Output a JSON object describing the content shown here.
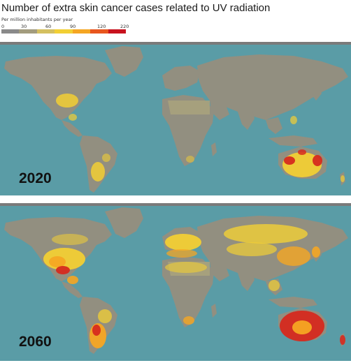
{
  "title": "Number of extra skin cancer cases related to UV radiation",
  "legend": {
    "caption": "Per million inhabitants per year",
    "ticks": [
      "0",
      "30",
      "60",
      "90",
      "120",
      "220"
    ],
    "colors": [
      "#8a8a8a",
      "#a39c7e",
      "#d4c060",
      "#f2cf34",
      "#f5a623",
      "#e8561e",
      "#c8121e"
    ]
  },
  "maps": [
    {
      "year": "2020"
    },
    {
      "year": "2060"
    }
  ],
  "palette": {
    "ocean": "#5a9ca6",
    "land": "#928f80",
    "land_light": "#a8a27c",
    "antarctica": "#7a7a7a",
    "yellow": "#f2cf34",
    "orange": "#f5a623",
    "red": "#d62a1e",
    "dark_red": "#b01418"
  }
}
